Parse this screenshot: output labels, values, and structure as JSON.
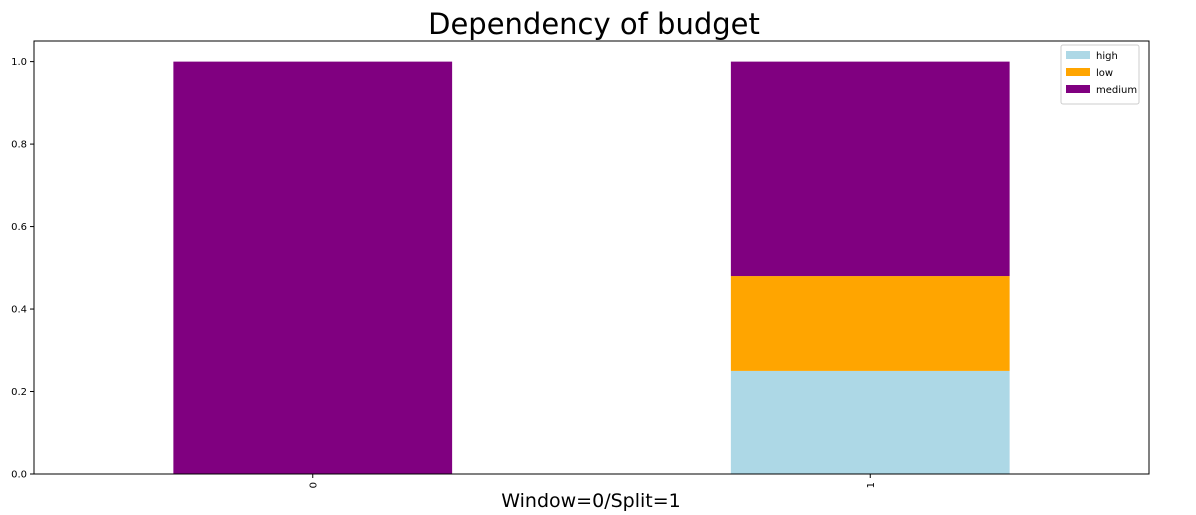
{
  "chart_data": {
    "type": "bar",
    "stacked": true,
    "title": "Dependency of budget",
    "xlabel": "Window=0/Split=1",
    "ylabel": "",
    "categories": [
      "0",
      "1"
    ],
    "series": [
      {
        "name": "high",
        "color": "#add8e6",
        "values": [
          0.0,
          0.25
        ]
      },
      {
        "name": "low",
        "color": "#ffa500",
        "values": [
          0.0,
          0.23
        ]
      },
      {
        "name": "medium",
        "color": "#800080",
        "values": [
          1.0,
          0.52
        ]
      }
    ],
    "ylim": [
      0,
      1.05
    ],
    "yticks": [
      "0.0",
      "0.2",
      "0.4",
      "0.6",
      "0.8",
      "1.0"
    ],
    "grid": false,
    "legend_position": "top-right"
  }
}
